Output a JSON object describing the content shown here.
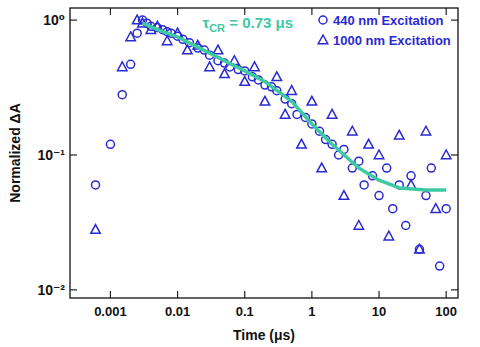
{
  "chart_data": {
    "type": "scatter",
    "log": true,
    "x_label": "Time (μs)",
    "y_label": "Normalized ΔA",
    "xlim": [
      0.00025,
      150
    ],
    "ylim": [
      0.0087,
      1.23
    ],
    "xticks": [
      0.001,
      0.01,
      0.1,
      1,
      10,
      100
    ],
    "yticks": [
      {
        "value": 0.01,
        "label": "10⁻²"
      },
      {
        "value": 0.1,
        "label": "10⁻¹"
      },
      {
        "value": 1,
        "label": "10⁰"
      }
    ],
    "legend": "upper right",
    "annotation": {
      "symbol": "τ",
      "subscript": "CR",
      "text": " = 0.73 μs",
      "color": "#3dc9a2"
    },
    "series": [
      {
        "name": "440 nm Excitation",
        "type": "scatter",
        "marker": "circle",
        "color": "#2a2ad2",
        "x": [
          0.0006,
          0.001,
          0.0015,
          0.002,
          0.0025,
          0.003,
          0.0035,
          0.004,
          0.005,
          0.006,
          0.007,
          0.008,
          0.01,
          0.012,
          0.015,
          0.02,
          0.025,
          0.03,
          0.04,
          0.05,
          0.06,
          0.08,
          0.1,
          0.13,
          0.16,
          0.2,
          0.25,
          0.3,
          0.4,
          0.5,
          0.6,
          0.8,
          1,
          1.3,
          1.6,
          2,
          2.5,
          3,
          4,
          5,
          6,
          8,
          10,
          13,
          16,
          20,
          25,
          30,
          40,
          50,
          60,
          80,
          100
        ],
        "values": [
          0.06,
          0.12,
          0.28,
          0.47,
          0.8,
          1.0,
          0.95,
          0.9,
          0.88,
          0.85,
          0.82,
          0.8,
          0.76,
          0.72,
          0.68,
          0.62,
          0.6,
          0.55,
          0.5,
          0.48,
          0.45,
          0.43,
          0.42,
          0.38,
          0.36,
          0.33,
          0.32,
          0.3,
          0.26,
          0.24,
          0.2,
          0.19,
          0.17,
          0.15,
          0.13,
          0.12,
          0.1,
          0.11,
          0.08,
          0.09,
          0.06,
          0.07,
          0.05,
          0.08,
          0.04,
          0.06,
          0.03,
          0.07,
          0.02,
          0.05,
          0.08,
          0.015,
          0.04
        ]
      },
      {
        "name": "1000 nm Excitation",
        "type": "scatter",
        "marker": "triangle",
        "color": "#2a2ad2",
        "x": [
          0.0006,
          0.0015,
          0.002,
          0.0025,
          0.003,
          0.004,
          0.005,
          0.007,
          0.01,
          0.014,
          0.02,
          0.03,
          0.04,
          0.05,
          0.07,
          0.1,
          0.14,
          0.2,
          0.3,
          0.4,
          0.5,
          0.7,
          1,
          1.4,
          2,
          3,
          4,
          5,
          7,
          10,
          14,
          20,
          30,
          40,
          50,
          70,
          100
        ],
        "values": [
          0.028,
          0.45,
          0.75,
          1.0,
          0.95,
          0.85,
          0.9,
          0.7,
          0.8,
          0.6,
          0.65,
          0.45,
          0.6,
          0.4,
          0.5,
          0.35,
          0.45,
          0.25,
          0.38,
          0.2,
          0.3,
          0.12,
          0.25,
          0.08,
          0.2,
          0.05,
          0.15,
          0.03,
          0.12,
          0.1,
          0.025,
          0.14,
          0.06,
          0.02,
          0.15,
          0.04,
          0.1
        ]
      },
      {
        "type": "line",
        "color": "#3dc9a2",
        "line_style": "solid",
        "x": [
          0.003,
          0.005,
          0.01,
          0.02,
          0.05,
          0.1,
          0.2,
          0.5,
          1,
          2,
          5,
          10,
          20,
          50,
          100
        ],
        "values": [
          0.95,
          0.85,
          0.75,
          0.63,
          0.5,
          0.42,
          0.35,
          0.25,
          0.17,
          0.12,
          0.08,
          0.065,
          0.057,
          0.055,
          0.055
        ]
      }
    ]
  }
}
